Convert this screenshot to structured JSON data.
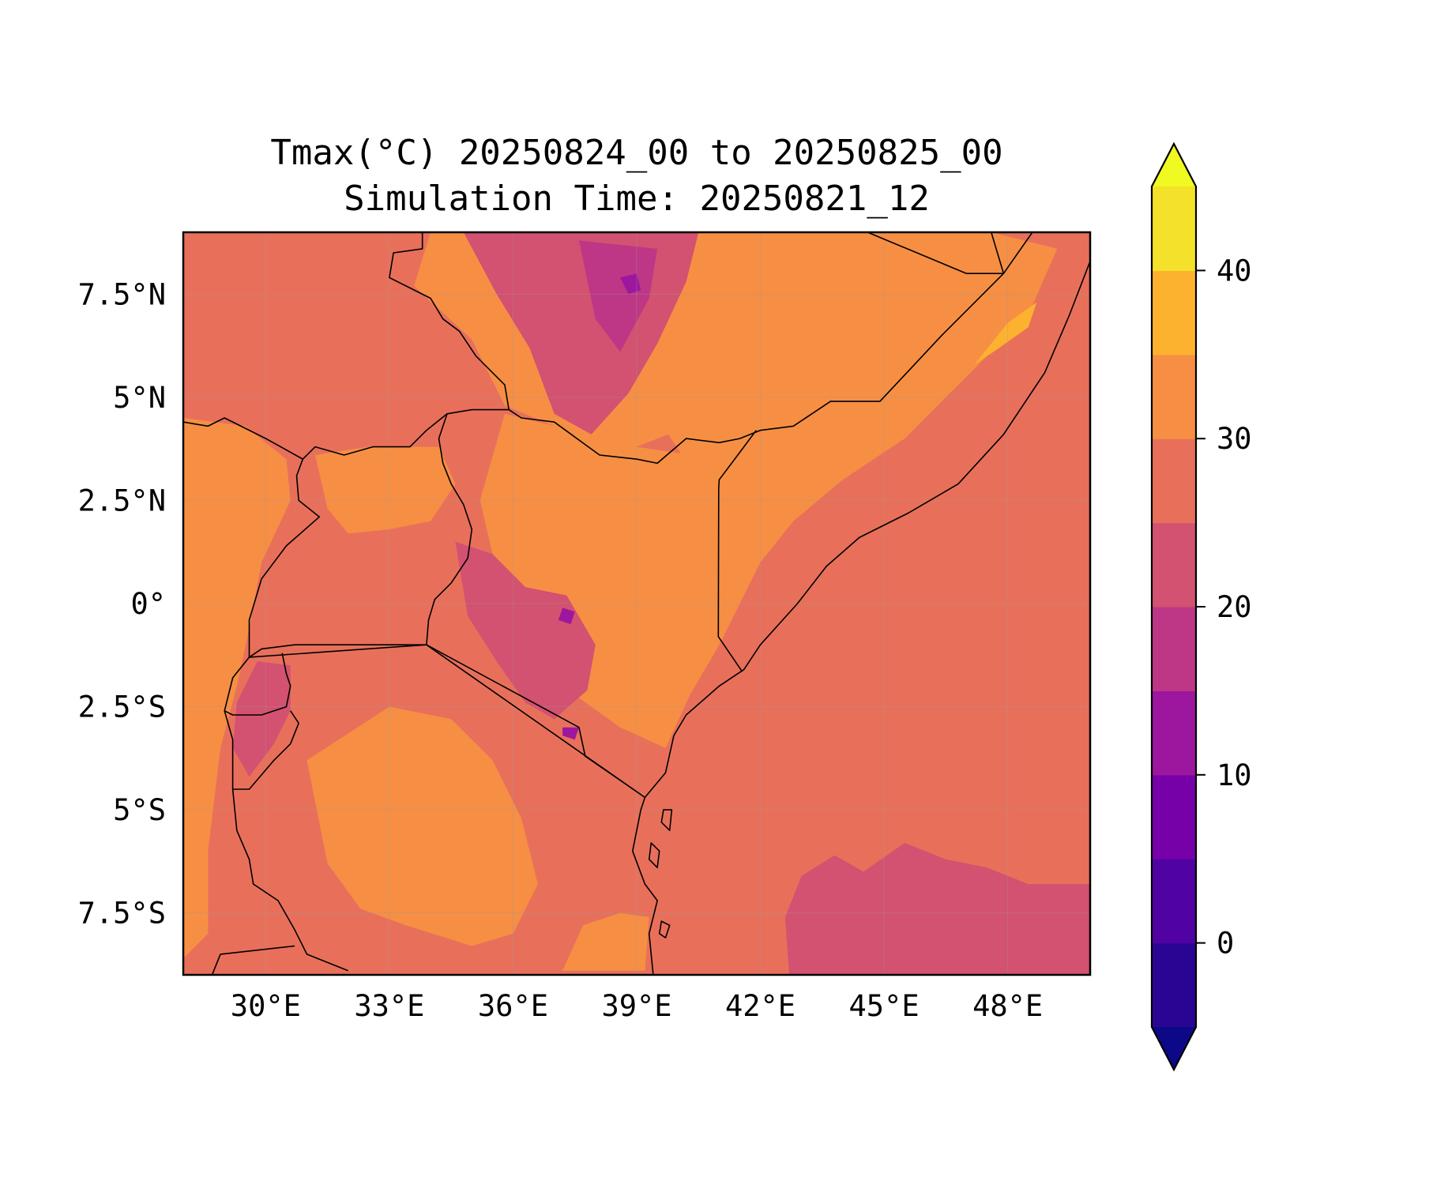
{
  "title": "Tmax(°C) 20250824_00 to 20250825_00",
  "subtitle": "Simulation Time: 20250821_12",
  "map": {
    "extent": {
      "lon": [
        28.0,
        50.0
      ],
      "lat": [
        -9.0,
        9.0
      ]
    },
    "lon_ticks": [
      {
        "value": 30,
        "label": "30°E"
      },
      {
        "value": 33,
        "label": "33°E"
      },
      {
        "value": 36,
        "label": "36°E"
      },
      {
        "value": 39,
        "label": "39°E"
      },
      {
        "value": 42,
        "label": "42°E"
      },
      {
        "value": 45,
        "label": "45°E"
      },
      {
        "value": 48,
        "label": "48°E"
      }
    ],
    "lat_ticks": [
      {
        "value": 7.5,
        "label": "7.5°N"
      },
      {
        "value": 5,
        "label": "5°N"
      },
      {
        "value": 2.5,
        "label": "2.5°N"
      },
      {
        "value": 0,
        "label": "0°"
      },
      {
        "value": -2.5,
        "label": "2.5°S"
      },
      {
        "value": -5,
        "label": "5°S"
      },
      {
        "value": -7.5,
        "label": "7.5°S"
      }
    ],
    "gridlines": true,
    "borders": true,
    "coastlines": true
  },
  "colorbar": {
    "orientation": "vertical",
    "placement": "right",
    "extend": "both",
    "range": [
      -5,
      45
    ],
    "levels": [
      -5,
      0,
      5,
      10,
      15,
      20,
      25,
      30,
      35,
      40,
      45
    ],
    "colors": [
      "#2a0593",
      "#5102a3",
      "#7701a8",
      "#9c179e",
      "#bd3786",
      "#d35171",
      "#e8705b",
      "#f68f44",
      "#fdb22f",
      "#f4e22a"
    ],
    "under_color": "#0d0887",
    "over_color": "#f0f921",
    "ticks": [
      {
        "value": 0,
        "label": "0"
      },
      {
        "value": 10,
        "label": "10"
      },
      {
        "value": 20,
        "label": "20"
      },
      {
        "value": 30,
        "label": "30"
      },
      {
        "value": 40,
        "label": "40"
      }
    ]
  },
  "field": {
    "background_value": 27.5,
    "regions": [
      {
        "name": "sea",
        "value": 27.5,
        "lonlat": [
          [
            41.5,
            -9
          ],
          [
            50,
            -9
          ],
          [
            50,
            9
          ],
          [
            49.2,
            8.6
          ],
          [
            48.5,
            7
          ],
          [
            47,
            5.5
          ],
          [
            45.5,
            4
          ],
          [
            44,
            3
          ],
          [
            42.8,
            2
          ],
          [
            42,
            1
          ],
          [
            41.5,
            0
          ],
          [
            41,
            -1
          ],
          [
            40.3,
            -2.2
          ],
          [
            39.7,
            -3.5
          ],
          [
            39.1,
            -4.7
          ],
          [
            38.9,
            -6
          ],
          [
            39.2,
            -7
          ],
          [
            39.4,
            -8
          ],
          [
            39.6,
            -9
          ]
        ]
      },
      {
        "name": "sea-cool",
        "value": 22.5,
        "lonlat": [
          [
            42.7,
            -9
          ],
          [
            50,
            -9
          ],
          [
            50,
            -6.8
          ],
          [
            48.5,
            -6.8
          ],
          [
            47.5,
            -6.4
          ],
          [
            46.5,
            -6.2
          ],
          [
            45.5,
            -5.8
          ],
          [
            44.5,
            -6.5
          ],
          [
            43.8,
            -6.1
          ],
          [
            43,
            -6.6
          ],
          [
            42.6,
            -7.6
          ]
        ]
      },
      {
        "name": "somalia-interior",
        "value": 32.5,
        "lonlat": [
          [
            41,
            -1
          ],
          [
            41.5,
            0
          ],
          [
            42,
            1
          ],
          [
            42.8,
            2
          ],
          [
            44,
            3
          ],
          [
            45.5,
            4
          ],
          [
            47,
            5.5
          ],
          [
            48.5,
            7
          ],
          [
            49.2,
            8.6
          ],
          [
            47.6,
            9
          ],
          [
            44,
            9
          ],
          [
            41.5,
            8.2
          ],
          [
            40,
            6.5
          ],
          [
            39.5,
            4.5
          ],
          [
            40.5,
            3
          ],
          [
            41,
            1.5
          ]
        ]
      },
      {
        "name": "somalia-coast-hot",
        "value": 37.5,
        "lonlat": [
          [
            47.2,
            5.8
          ],
          [
            48,
            6.8
          ],
          [
            48.7,
            7.3
          ],
          [
            48.5,
            6.7
          ],
          [
            47.8,
            6.2
          ]
        ]
      },
      {
        "name": "ethiopia-lowland",
        "value": 32.5,
        "lonlat": [
          [
            34,
            9
          ],
          [
            47.6,
            9
          ],
          [
            44,
            7
          ],
          [
            41,
            4.6
          ],
          [
            39,
            3.8
          ],
          [
            37,
            4.3
          ],
          [
            35.8,
            4.8
          ],
          [
            35,
            6.4
          ],
          [
            33.6,
            7.7
          ]
        ]
      },
      {
        "name": "ethiopia-highland",
        "value": 22.5,
        "lonlat": [
          [
            34.8,
            9
          ],
          [
            40.5,
            9
          ],
          [
            40.2,
            7.8
          ],
          [
            39.5,
            6.3
          ],
          [
            38.8,
            5.1
          ],
          [
            37.9,
            4.1
          ],
          [
            37,
            4.6
          ],
          [
            36.4,
            6.2
          ],
          [
            35.6,
            7.5
          ]
        ]
      },
      {
        "name": "ethiopia-highland-cold",
        "value": 17.5,
        "lonlat": [
          [
            37.6,
            8.8
          ],
          [
            39.5,
            8.6
          ],
          [
            39.3,
            7.4
          ],
          [
            38.6,
            6.1
          ],
          [
            38,
            6.9
          ]
        ]
      },
      {
        "name": "ethiopia-peak",
        "value": 12.5,
        "lonlat": [
          [
            38.6,
            7.9
          ],
          [
            39,
            8
          ],
          [
            39.1,
            7.6
          ],
          [
            38.8,
            7.5
          ]
        ]
      },
      {
        "name": "kenya-north",
        "value": 32.5,
        "lonlat": [
          [
            35.8,
            4.6
          ],
          [
            37,
            4.3
          ],
          [
            39,
            3.8
          ],
          [
            41,
            3.5
          ],
          [
            41,
            -1
          ],
          [
            40.3,
            -2.2
          ],
          [
            39.7,
            -3.5
          ],
          [
            38.6,
            -3
          ],
          [
            37.2,
            -2
          ],
          [
            36.3,
            -1
          ],
          [
            35.6,
            0.8
          ],
          [
            35.2,
            2.5
          ]
        ]
      },
      {
        "name": "kenya-highlands",
        "value": 22.5,
        "lonlat": [
          [
            34.6,
            1.5
          ],
          [
            35.5,
            1.2
          ],
          [
            36.3,
            0.4
          ],
          [
            37.3,
            0.2
          ],
          [
            38,
            -1
          ],
          [
            37.8,
            -2.1
          ],
          [
            37,
            -2.8
          ],
          [
            36.3,
            -2.4
          ],
          [
            35.6,
            -1.4
          ],
          [
            34.9,
            -0.3
          ]
        ]
      },
      {
        "name": "kenya-peak",
        "value": 12.5,
        "lonlat": [
          [
            37.2,
            -0.1
          ],
          [
            37.5,
            -0.2
          ],
          [
            37.4,
            -0.5
          ],
          [
            37.1,
            -0.4
          ]
        ]
      },
      {
        "name": "kilimanjaro",
        "value": 12.5,
        "lonlat": [
          [
            37.2,
            -3
          ],
          [
            37.6,
            -3
          ],
          [
            37.5,
            -3.3
          ],
          [
            37.2,
            -3.2
          ]
        ]
      },
      {
        "name": "uganda-north",
        "value": 32.5,
        "lonlat": [
          [
            31.2,
            3.6
          ],
          [
            32.5,
            3.8
          ],
          [
            33.5,
            3.8
          ],
          [
            34.2,
            3.8
          ],
          [
            34.6,
            2.9
          ],
          [
            34,
            2
          ],
          [
            33,
            1.8
          ],
          [
            32,
            1.7
          ],
          [
            31.5,
            2.3
          ]
        ]
      },
      {
        "name": "tanzania-central",
        "value": 32.5,
        "lonlat": [
          [
            31,
            -3.8
          ],
          [
            33,
            -2.5
          ],
          [
            34.5,
            -2.8
          ],
          [
            35.5,
            -3.8
          ],
          [
            36.2,
            -5.2
          ],
          [
            36.6,
            -6.8
          ],
          [
            36,
            -8
          ],
          [
            35,
            -8.3
          ],
          [
            33.4,
            -7.8
          ],
          [
            32.3,
            -7.4
          ],
          [
            31.5,
            -6.3
          ]
        ]
      },
      {
        "name": "tanzania-east",
        "value": 32.5,
        "lonlat": [
          [
            37.2,
            -8.9
          ],
          [
            39.2,
            -8.9
          ],
          [
            39.3,
            -7.6
          ],
          [
            38.6,
            -7.5
          ],
          [
            37.7,
            -7.8
          ]
        ]
      },
      {
        "name": "rwanda-burundi",
        "value": 22.5,
        "lonlat": [
          [
            29.8,
            -1.4
          ],
          [
            30.6,
            -1.5
          ],
          [
            30.6,
            -2.6
          ],
          [
            30.2,
            -3.4
          ],
          [
            29.6,
            -4.2
          ],
          [
            29.2,
            -3.5
          ],
          [
            29.3,
            -2.4
          ]
        ]
      },
      {
        "name": "drc-east",
        "value": 32.5,
        "lonlat": [
          [
            28,
            4.5
          ],
          [
            29.5,
            4.3
          ],
          [
            30.5,
            3.5
          ],
          [
            30.6,
            2.5
          ],
          [
            29.9,
            1
          ],
          [
            29.6,
            -0.6
          ],
          [
            29.3,
            -2
          ],
          [
            28.9,
            -3.5
          ],
          [
            28.6,
            -6
          ],
          [
            28.6,
            -8
          ],
          [
            28,
            -8.6
          ]
        ]
      }
    ]
  },
  "boundaries": [
    [
      [
        33.8,
        9
      ],
      [
        33.8,
        8.6
      ],
      [
        33.1,
        8.5
      ],
      [
        33.0,
        7.9
      ],
      [
        33.4,
        7.7
      ],
      [
        34.0,
        7.4
      ],
      [
        34.3,
        6.9
      ],
      [
        34.7,
        6.6
      ],
      [
        35.1,
        6.0
      ],
      [
        35.8,
        5.3
      ],
      [
        35.9,
        4.7
      ]
    ],
    [
      [
        35.9,
        4.7
      ],
      [
        36.2,
        4.5
      ],
      [
        37.0,
        4.4
      ],
      [
        38.1,
        3.6
      ],
      [
        39.0,
        3.5
      ],
      [
        39.5,
        3.4
      ],
      [
        40.2,
        4.0
      ],
      [
        41.0,
        3.9
      ],
      [
        41.5,
        4.0
      ],
      [
        42.0,
        4.2
      ],
      [
        42.8,
        4.3
      ],
      [
        43.7,
        4.9
      ],
      [
        44.9,
        4.9
      ],
      [
        46.4,
        6.5
      ],
      [
        47.9,
        8.0
      ],
      [
        47.6,
        9
      ]
    ],
    [
      [
        44.6,
        9
      ],
      [
        47,
        8
      ]
    ],
    [
      [
        47,
        8
      ],
      [
        47.9,
        8
      ]
    ],
    [
      [
        47.9,
        8
      ],
      [
        48.6,
        9
      ]
    ],
    [
      [
        41.9,
        4.2
      ],
      [
        41.6,
        3.8
      ],
      [
        41,
        3
      ],
      [
        40.99,
        2.8
      ],
      [
        40.98,
        -0.8
      ],
      [
        41.56,
        -1.65
      ]
    ],
    [
      [
        33.9,
        -1
      ],
      [
        37.6,
        -3
      ],
      [
        37.75,
        -3.7
      ],
      [
        39.2,
        -4.7
      ]
    ],
    [
      [
        28,
        4.4
      ],
      [
        28.6,
        4.3
      ],
      [
        29,
        4.5
      ],
      [
        30,
        4
      ],
      [
        30.9,
        3.5
      ],
      [
        31.2,
        3.8
      ],
      [
        31.9,
        3.6
      ],
      [
        32.6,
        3.8
      ],
      [
        33.5,
        3.8
      ],
      [
        33.9,
        4.2
      ],
      [
        34.4,
        4.6
      ],
      [
        35.0,
        4.7
      ],
      [
        35.9,
        4.7
      ]
    ],
    [
      [
        34.4,
        4.6
      ],
      [
        34.2,
        4.0
      ],
      [
        34.3,
        3.4
      ],
      [
        34.5,
        2.9
      ],
      [
        34.8,
        2.4
      ],
      [
        35.0,
        1.8
      ],
      [
        34.9,
        1.1
      ],
      [
        34.5,
        0.5
      ],
      [
        34.1,
        0.1
      ],
      [
        33.95,
        -0.4
      ],
      [
        33.9,
        -1
      ]
    ],
    [
      [
        30.9,
        3.5
      ],
      [
        30.75,
        3.1
      ],
      [
        30.8,
        2.5
      ],
      [
        31.3,
        2.1
      ],
      [
        30.5,
        1.4
      ],
      [
        29.9,
        0.6
      ],
      [
        29.6,
        -0.4
      ],
      [
        29.6,
        -1.3
      ]
    ],
    [
      [
        29.6,
        -1.3
      ],
      [
        29.9,
        -1.1
      ],
      [
        30.7,
        -1
      ],
      [
        33.9,
        -1
      ]
    ],
    [
      [
        29.6,
        -1.3
      ],
      [
        29.2,
        -1.8
      ],
      [
        29.0,
        -2.6
      ],
      [
        29.2,
        -2.7
      ],
      [
        29.9,
        -2.7
      ],
      [
        30.5,
        -2.5
      ],
      [
        30.6,
        -2.0
      ],
      [
        30.5,
        -1.7
      ],
      [
        30.4,
        -1.2
      ]
    ],
    [
      [
        29.0,
        -2.6
      ],
      [
        29.2,
        -3.3
      ],
      [
        29.2,
        -4.5
      ],
      [
        29.6,
        -4.5
      ],
      [
        30.2,
        -3.8
      ],
      [
        30.6,
        -3.4
      ],
      [
        30.8,
        -2.9
      ],
      [
        30.6,
        -2.6
      ]
    ],
    [
      [
        29.2,
        -4.5
      ],
      [
        29.3,
        -5.5
      ],
      [
        29.6,
        -6.2
      ],
      [
        29.7,
        -6.8
      ],
      [
        30.3,
        -7.2
      ],
      [
        30.7,
        -7.9
      ],
      [
        31.0,
        -8.5
      ],
      [
        32.0,
        -8.9
      ]
    ],
    [
      [
        28.7,
        -9
      ],
      [
        28.9,
        -8.5
      ],
      [
        30.7,
        -8.3
      ]
    ],
    [
      [
        39.4,
        -9
      ],
      [
        39.3,
        -8.0
      ],
      [
        39.5,
        -7.2
      ],
      [
        39.2,
        -6.8
      ],
      [
        38.9,
        -6.0
      ],
      [
        39.1,
        -5.0
      ],
      [
        39.2,
        -4.7
      ],
      [
        39.7,
        -4.1
      ],
      [
        39.9,
        -3.2
      ],
      [
        40.2,
        -2.7
      ],
      [
        41.0,
        -2.0
      ],
      [
        41.6,
        -1.6
      ],
      [
        42.0,
        -1.0
      ],
      [
        42.9,
        0.0
      ],
      [
        43.6,
        0.9
      ],
      [
        44.4,
        1.6
      ],
      [
        45.6,
        2.2
      ],
      [
        46.8,
        2.9
      ],
      [
        47.9,
        4.1
      ],
      [
        48.9,
        5.6
      ],
      [
        49.5,
        7.0
      ],
      [
        50,
        8.3
      ]
    ],
    [
      [
        39.65,
        -5.0
      ],
      [
        39.85,
        -5.0
      ],
      [
        39.8,
        -5.5
      ],
      [
        39.6,
        -5.3
      ]
    ],
    [
      [
        39.35,
        -5.8
      ],
      [
        39.55,
        -6.0
      ],
      [
        39.5,
        -6.4
      ],
      [
        39.3,
        -6.2
      ]
    ],
    [
      [
        39.6,
        -7.7
      ],
      [
        39.8,
        -7.8
      ],
      [
        39.7,
        -8.1
      ],
      [
        39.55,
        -8.0
      ]
    ]
  ]
}
